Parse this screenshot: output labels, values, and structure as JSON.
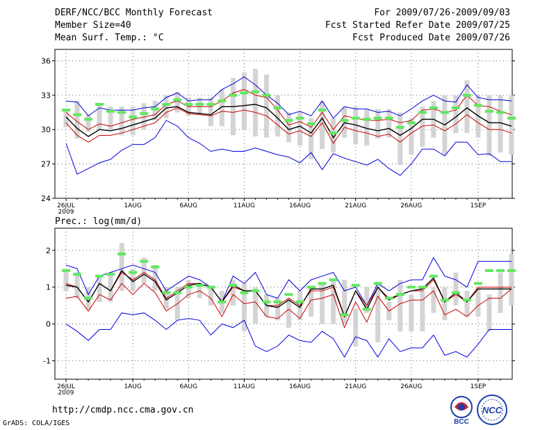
{
  "header": {
    "title": "DERF/NCC/BCC Monthly Forecast",
    "member_size": "Member Size=40",
    "variable": "Mean Surf. Temp.: °C",
    "period": "For 2009/07/26-2009/09/03",
    "started": "Fcst Started Refer Date 2009/07/25",
    "produced": "Fcst Produced Date 2009/07/26"
  },
  "footer": {
    "url": "http://cmdp.ncc.cma.gov.cn",
    "credit": "GrADS: COLA/IGES",
    "logo_left_text": "BCC",
    "logo_right_text": "NCC"
  },
  "colors": {
    "box": "#d4d4d4",
    "marker": "#60e860",
    "envelope": "#0000dd",
    "spread": "#cc0000",
    "mean": "#000000",
    "grid": "#666666"
  },
  "chart_data": [
    {
      "type": "box",
      "title": "Mean Surf. Temp.: °C",
      "ylim": [
        24,
        37
      ],
      "yticks": [
        24,
        27,
        30,
        33,
        36
      ],
      "xlim": [
        0,
        39
      ],
      "xticks": [
        {
          "x": 0,
          "label": "26JUL"
        },
        {
          "x": 6,
          "label": "1AUG"
        },
        {
          "x": 11,
          "label": "6AUG"
        },
        {
          "x": 16,
          "label": "11AUG"
        },
        {
          "x": 21,
          "label": "16AUG"
        },
        {
          "x": 26,
          "label": "21AUG"
        },
        {
          "x": 31,
          "label": "26AUG"
        },
        {
          "x": 37,
          "label": "1SEP"
        }
      ],
      "year_label": "2009",
      "grid": true,
      "series": [
        {
          "name": "box_upper",
          "values": [
            31.8,
            32.5,
            31.3,
            32.3,
            32.0,
            32.0,
            32.0,
            32.3,
            32.5,
            33.0,
            33.3,
            32.8,
            32.8,
            32.8,
            33.5,
            34.5,
            35.0,
            35.3,
            34.8,
            33.0,
            31.5,
            31.5,
            31.0,
            32.5,
            31.0,
            32.0,
            32.0,
            31.8,
            31.8,
            31.8,
            31.5,
            31.0,
            32.0,
            32.5,
            33.0,
            33.0,
            34.3,
            33.0,
            33.0,
            33.0,
            33.0
          ]
        },
        {
          "name": "box_lower",
          "values": [
            30.2,
            29.2,
            29.8,
            30.0,
            30.0,
            29.5,
            29.5,
            30.0,
            30.8,
            31.0,
            31.5,
            31.2,
            31.3,
            30.3,
            30.3,
            29.5,
            30.0,
            29.4,
            29.3,
            29.4,
            28.9,
            28.6,
            27.4,
            28.3,
            28.0,
            29.3,
            28.7,
            28.6,
            29.2,
            29.3,
            26.9,
            27.8,
            28.5,
            29.3,
            27.8,
            29.7,
            29.7,
            29.3,
            27.7,
            28.0,
            27.8
          ]
        },
        {
          "name": "marker",
          "values": [
            31.7,
            31.3,
            30.9,
            32.2,
            31.6,
            31.5,
            31.1,
            31.4,
            31.8,
            32.2,
            32.6,
            32.2,
            32.2,
            32.2,
            32.5,
            33.0,
            33.2,
            33.3,
            33.0,
            31.9,
            30.8,
            31.0,
            30.5,
            31.7,
            29.7,
            30.8,
            31.0,
            30.9,
            31.0,
            31.0,
            30.2,
            30.6,
            31.5,
            31.9,
            31.5,
            31.9,
            33.0,
            32.1,
            31.6,
            31.5,
            31.0
          ]
        },
        {
          "name": "ensemble_max",
          "values": [
            32.5,
            32.4,
            31.2,
            31.9,
            31.7,
            31.7,
            31.7,
            31.9,
            32.0,
            32.8,
            33.2,
            32.5,
            32.6,
            32.6,
            33.5,
            34.0,
            34.6,
            33.9,
            33.0,
            32.3,
            31.3,
            31.6,
            31.2,
            32.5,
            31.0,
            32.0,
            31.8,
            31.8,
            31.5,
            31.6,
            31.2,
            31.8,
            32.5,
            33.0,
            32.5,
            32.4,
            33.9,
            32.8,
            32.6,
            32.6,
            32.5
          ]
        },
        {
          "name": "spread_upper",
          "values": [
            31.5,
            30.7,
            30.0,
            30.5,
            30.3,
            30.6,
            30.9,
            31.1,
            31.3,
            32.2,
            32.5,
            32.0,
            32.0,
            32.0,
            32.5,
            33.2,
            33.5,
            33.0,
            32.8,
            31.7,
            30.4,
            30.7,
            30.2,
            31.5,
            30.0,
            31.2,
            31.0,
            30.8,
            30.8,
            30.9,
            30.6,
            30.8,
            31.7,
            31.8,
            31.5,
            31.7,
            33.0,
            32.1,
            32.0,
            31.6,
            31.3
          ]
        },
        {
          "name": "ensemble_mean",
          "values": [
            31.1,
            30.1,
            29.4,
            30.0,
            29.9,
            30.1,
            30.4,
            30.7,
            31.0,
            31.9,
            32.0,
            31.5,
            31.4,
            31.3,
            32.0,
            32.0,
            32.1,
            32.2,
            31.9,
            31.0,
            30.0,
            30.3,
            29.7,
            31.0,
            29.3,
            30.6,
            30.4,
            30.1,
            29.9,
            30.1,
            29.5,
            30.1,
            30.9,
            30.9,
            30.4,
            31.1,
            31.9,
            31.2,
            30.6,
            30.6,
            30.3
          ]
        },
        {
          "name": "spread_lower",
          "values": [
            30.6,
            29.5,
            28.9,
            29.5,
            29.5,
            29.7,
            30.0,
            30.3,
            30.6,
            31.5,
            31.9,
            31.4,
            31.3,
            31.2,
            31.6,
            31.5,
            31.7,
            31.5,
            31.2,
            30.4,
            29.6,
            29.9,
            29.4,
            30.6,
            28.8,
            30.2,
            29.9,
            29.7,
            29.4,
            29.6,
            28.9,
            29.7,
            30.3,
            30.4,
            29.9,
            30.5,
            31.3,
            30.6,
            30.0,
            30.0,
            29.7
          ]
        },
        {
          "name": "ensemble_min",
          "values": [
            28.8,
            26.1,
            26.6,
            27.1,
            27.4,
            28.2,
            28.7,
            28.7,
            29.3,
            30.8,
            30.3,
            29.3,
            28.8,
            28.1,
            28.3,
            28.1,
            28.1,
            28.4,
            28.1,
            27.8,
            27.6,
            27.1,
            28.0,
            26.5,
            27.9,
            27.5,
            27.2,
            26.9,
            27.4,
            26.6,
            26.0,
            27.0,
            28.3,
            28.3,
            27.7,
            28.9,
            28.9,
            27.8,
            27.9,
            27.2,
            27.2
          ]
        }
      ]
    },
    {
      "type": "box",
      "title": "Prec.: log(mm/d)",
      "ylim": [
        -1.5,
        2.6
      ],
      "yticks": [
        -1,
        0,
        1,
        2
      ],
      "xlim": [
        0,
        39
      ],
      "xticks": [
        {
          "x": 0,
          "label": "26JUL"
        },
        {
          "x": 6,
          "label": "1AUG"
        },
        {
          "x": 11,
          "label": "6AUG"
        },
        {
          "x": 16,
          "label": "11AUG"
        },
        {
          "x": 21,
          "label": "16AUG"
        },
        {
          "x": 26,
          "label": "21AUG"
        },
        {
          "x": 31,
          "label": "26AUG"
        },
        {
          "x": 37,
          "label": "1SEP"
        }
      ],
      "year_label": "2009",
      "grid": true,
      "series": [
        {
          "name": "box_upper",
          "values": [
            1.5,
            1.4,
            1.0,
            1.3,
            1.4,
            2.2,
            1.5,
            1.8,
            1.6,
            1.0,
            1.0,
            1.2,
            1.1,
            1.0,
            0.9,
            1.2,
            1.1,
            1.0,
            0.8,
            0.7,
            0.7,
            0.9,
            1.0,
            1.1,
            1.2,
            1.2,
            0.4,
            1.0,
            1.1,
            0.6,
            1.2,
            0.8,
            0.9,
            1.0,
            1.0,
            1.4,
            0.9,
            1.0,
            0.8,
            1.4,
            1.9
          ]
        },
        {
          "name": "box_lower",
          "values": [
            0.9,
            0.7,
            0.4,
            0.6,
            0.6,
            0.9,
            0.9,
            1.1,
            0.9,
            0.4,
            0.1,
            0.7,
            0.7,
            0.5,
            0.3,
            0.5,
            -0.2,
            0.0,
            0.2,
            0.1,
            -0.1,
            0.1,
            0.2,
            0.0,
            0.0,
            0.0,
            -0.6,
            0.3,
            -0.5,
            0.1,
            -0.2,
            -0.2,
            -0.2,
            0.3,
            0.1,
            0.5,
            0.2,
            0.2,
            -0.2,
            0.3,
            0.5
          ]
        },
        {
          "name": "marker",
          "values": [
            1.45,
            1.35,
            0.7,
            1.3,
            1.35,
            1.9,
            1.4,
            1.7,
            1.55,
            0.85,
            0.85,
            1.0,
            1.05,
            1.0,
            0.6,
            1.05,
            0.85,
            0.9,
            0.6,
            0.6,
            0.8,
            0.6,
            1.0,
            1.1,
            1.2,
            0.25,
            1.05,
            0.4,
            1.1,
            0.7,
            0.8,
            1.0,
            1.0,
            1.3,
            0.65,
            0.85,
            0.65,
            1.1,
            1.45,
            1.45,
            1.45
          ]
        },
        {
          "name": "ensemble_max",
          "values": [
            1.6,
            1.5,
            0.8,
            1.3,
            1.4,
            1.5,
            1.6,
            1.5,
            1.4,
            0.9,
            1.1,
            1.3,
            1.2,
            1.0,
            0.6,
            1.3,
            1.1,
            1.4,
            0.8,
            0.7,
            1.2,
            0.9,
            1.2,
            1.3,
            1.4,
            0.9,
            1.0,
            0.5,
            1.1,
            0.9,
            1.1,
            1.2,
            1.2,
            1.8,
            1.3,
            1.2,
            1.0,
            1.7,
            1.7,
            1.7,
            1.7
          ]
        },
        {
          "name": "spread_upper",
          "values": [
            1.1,
            1.0,
            0.6,
            1.1,
            0.9,
            1.4,
            1.2,
            1.4,
            1.2,
            0.7,
            0.9,
            1.1,
            1.1,
            1.0,
            0.6,
            1.0,
            0.9,
            0.9,
            0.5,
            0.5,
            0.7,
            0.5,
            0.9,
            0.9,
            1.0,
            0.2,
            0.9,
            0.5,
            1.0,
            0.7,
            0.8,
            0.9,
            0.9,
            1.2,
            0.6,
            0.8,
            0.6,
            1.0,
            1.0,
            1.0,
            1.0
          ]
        },
        {
          "name": "ensemble_mean",
          "values": [
            1.05,
            1.0,
            0.6,
            1.1,
            0.9,
            1.45,
            1.15,
            1.35,
            1.15,
            0.65,
            0.85,
            1.05,
            1.1,
            1.0,
            0.6,
            1.05,
            0.9,
            0.9,
            0.5,
            0.45,
            0.65,
            0.45,
            0.95,
            0.95,
            1.05,
            0.2,
            0.9,
            0.4,
            1.0,
            0.65,
            0.8,
            0.9,
            0.95,
            1.25,
            0.6,
            0.85,
            0.6,
            0.95,
            0.95,
            0.95,
            0.95
          ]
        },
        {
          "name": "spread_lower",
          "values": [
            0.7,
            0.75,
            0.35,
            0.8,
            0.65,
            1.1,
            0.8,
            1.1,
            0.85,
            0.35,
            0.55,
            0.8,
            0.9,
            0.7,
            0.2,
            0.8,
            0.55,
            0.6,
            0.2,
            0.15,
            0.4,
            0.15,
            0.65,
            0.7,
            0.8,
            -0.1,
            0.6,
            0.05,
            0.75,
            0.35,
            0.55,
            0.65,
            0.65,
            0.9,
            0.25,
            0.4,
            0.2,
            0.5,
            0.7,
            0.7,
            0.95
          ]
        },
        {
          "name": "ensemble_min",
          "values": [
            0.0,
            -0.2,
            -0.45,
            -0.15,
            -0.15,
            0.3,
            0.25,
            0.3,
            0.1,
            -0.15,
            0.1,
            0.15,
            0.1,
            -0.3,
            0.0,
            -0.1,
            0.1,
            -0.6,
            -0.75,
            -0.6,
            -0.3,
            -0.45,
            -0.5,
            -0.2,
            -0.4,
            -0.9,
            -0.35,
            -0.45,
            -0.9,
            -0.4,
            -0.75,
            -0.65,
            -0.65,
            -0.3,
            -0.85,
            -0.75,
            -0.9,
            -0.55,
            -0.15,
            -0.15,
            -0.15
          ]
        }
      ]
    }
  ]
}
